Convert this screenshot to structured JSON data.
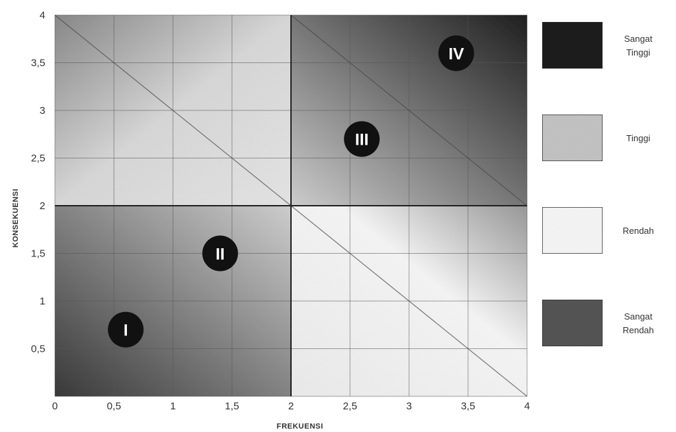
{
  "chart_data": {
    "type": "heatmap",
    "xlabel": "FREKUENSI",
    "ylabel": "KONSEKUENSI",
    "xlim": [
      0,
      4
    ],
    "ylim": [
      0,
      4
    ],
    "x_ticks": [
      "0",
      "0,5",
      "1",
      "1,5",
      "2",
      "2,5",
      "3",
      "3,5",
      "4"
    ],
    "y_ticks": [
      "0,5",
      "1",
      "1,5",
      "2",
      "2,5",
      "3",
      "3,5",
      "4"
    ],
    "grid": true,
    "diagonals": [
      {
        "from": [
          0,
          4
        ],
        "to": [
          4,
          0
        ]
      },
      {
        "from": [
          2,
          4
        ],
        "to": [
          4,
          2
        ]
      }
    ],
    "zones": [
      {
        "label": "I",
        "x": 0.6,
        "y": 0.7
      },
      {
        "label": "II",
        "x": 1.4,
        "y": 1.5
      },
      {
        "label": "III",
        "x": 2.6,
        "y": 2.7
      },
      {
        "label": "IV",
        "x": 3.4,
        "y": 3.6
      }
    ],
    "legend": {
      "position": "right",
      "items": [
        {
          "label_lines": [
            "Sangat",
            "Tinggi"
          ],
          "color": "#1e1e1e"
        },
        {
          "label_lines": [
            "Tinggi"
          ],
          "color": "#c4c4c4"
        },
        {
          "label_lines": [
            "Rendah"
          ],
          "color": "#f7f7f7"
        },
        {
          "label_lines": [
            "Sangat",
            "Rendah"
          ],
          "color": "#555555"
        }
      ]
    }
  }
}
